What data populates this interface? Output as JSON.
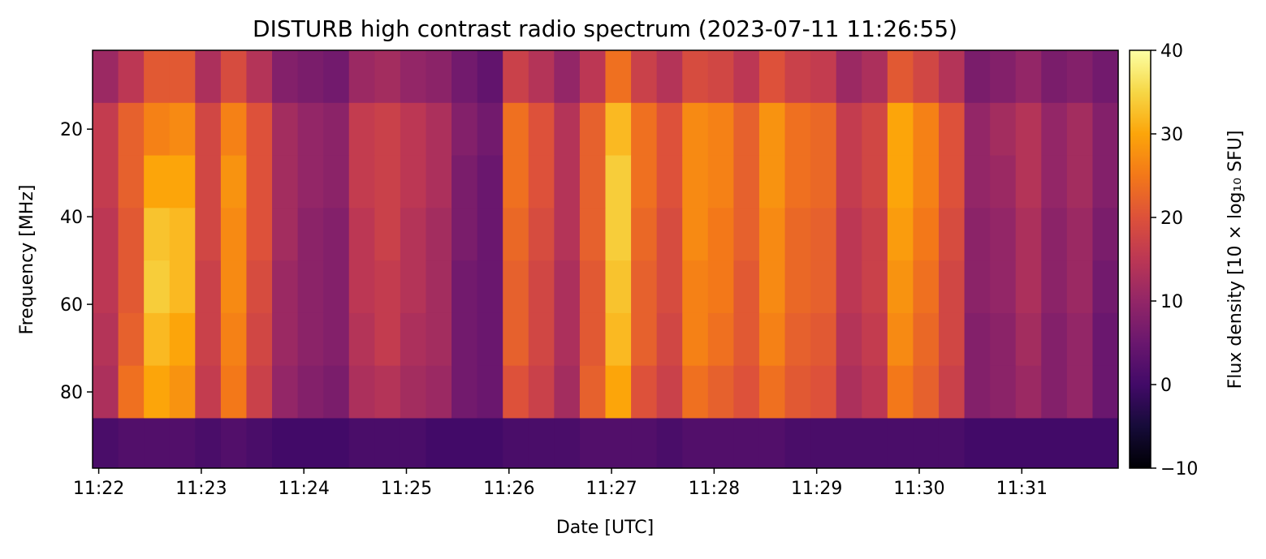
{
  "chart_data": {
    "type": "heatmap",
    "title": "DISTURB high contrast radio spectrum (2023-07-11 11:26:55)",
    "xlabel": "Date [UTC]",
    "ylabel": "Frequency [MHz]",
    "x": [
      21.94,
      22.19,
      22.44,
      22.69,
      22.94,
      23.19,
      23.44,
      23.69,
      23.94,
      24.19,
      24.44,
      24.69,
      24.94,
      25.19,
      25.44,
      25.69,
      25.94,
      26.19,
      26.44,
      26.69,
      26.94,
      27.19,
      27.44,
      27.69,
      27.94,
      28.19,
      28.44,
      28.69,
      28.94,
      29.19,
      29.44,
      29.69,
      29.94,
      30.19,
      30.44,
      30.69,
      30.94,
      31.19,
      31.44,
      31.69,
      31.94
    ],
    "y": [
      2,
      14,
      26,
      38,
      50,
      62,
      74,
      86,
      97.4
    ],
    "z": [
      [
        11,
        15,
        21,
        21,
        13,
        19,
        14,
        8,
        7,
        6,
        11,
        12,
        10,
        9,
        6,
        4,
        17,
        14,
        10,
        15,
        24,
        17,
        14,
        19,
        18,
        15,
        20,
        17,
        16,
        11,
        13,
        21,
        18,
        14,
        7,
        8,
        10,
        7,
        8,
        6
      ],
      [
        16,
        22,
        26,
        27,
        18,
        26,
        20,
        12,
        10,
        9,
        16,
        17,
        15,
        13,
        8,
        6,
        24,
        20,
        14,
        22,
        32,
        24,
        20,
        27,
        26,
        22,
        28,
        24,
        23,
        16,
        18,
        30,
        26,
        20,
        10,
        12,
        14,
        10,
        12,
        8
      ],
      [
        16,
        22,
        30,
        30,
        18,
        28,
        20,
        12,
        10,
        9,
        16,
        17,
        15,
        13,
        7,
        5,
        24,
        20,
        14,
        22,
        34,
        24,
        20,
        27,
        26,
        22,
        28,
        24,
        23,
        16,
        18,
        30,
        26,
        20,
        10,
        11,
        14,
        10,
        12,
        8
      ],
      [
        15,
        21,
        33,
        32,
        18,
        27,
        20,
        12,
        9,
        8,
        15,
        17,
        14,
        12,
        7,
        5,
        23,
        19,
        14,
        22,
        34,
        23,
        19,
        27,
        25,
        22,
        27,
        23,
        22,
        15,
        17,
        29,
        25,
        19,
        9,
        10,
        13,
        9,
        11,
        7
      ],
      [
        15,
        21,
        34,
        32,
        17,
        27,
        19,
        11,
        9,
        8,
        15,
        16,
        14,
        12,
        6,
        5,
        22,
        18,
        13,
        21,
        33,
        22,
        19,
        26,
        25,
        21,
        27,
        23,
        22,
        15,
        17,
        28,
        24,
        18,
        9,
        10,
        13,
        9,
        11,
        6
      ],
      [
        14,
        22,
        32,
        30,
        17,
        26,
        18,
        11,
        9,
        8,
        14,
        16,
        13,
        12,
        6,
        5,
        22,
        18,
        13,
        21,
        32,
        22,
        18,
        26,
        24,
        21,
        26,
        22,
        21,
        14,
        16,
        27,
        23,
        18,
        8,
        9,
        12,
        8,
        10,
        5
      ],
      [
        13,
        24,
        30,
        28,
        16,
        25,
        17,
        10,
        8,
        7,
        13,
        14,
        12,
        11,
        6,
        5,
        20,
        17,
        12,
        22,
        30,
        20,
        17,
        24,
        22,
        20,
        24,
        21,
        20,
        13,
        15,
        25,
        22,
        17,
        8,
        9,
        11,
        8,
        10,
        5
      ],
      [
        1,
        2,
        2,
        2,
        1,
        2,
        1,
        0,
        0,
        0,
        1,
        1,
        1,
        0,
        0,
        0,
        1,
        1,
        1,
        2,
        2,
        2,
        1,
        2,
        2,
        2,
        2,
        1,
        1,
        1,
        1,
        1,
        1,
        1,
        0,
        0,
        0,
        0,
        0,
        0
      ]
    ],
    "xlim": [
      21.94,
      31.94
    ],
    "ylim": [
      2,
      97.4
    ],
    "y_inverted": true,
    "xticks": [
      {
        "value": 22,
        "label": "11:22"
      },
      {
        "value": 23,
        "label": "11:23"
      },
      {
        "value": 24,
        "label": "11:24"
      },
      {
        "value": 25,
        "label": "11:25"
      },
      {
        "value": 26,
        "label": "11:26"
      },
      {
        "value": 27,
        "label": "11:27"
      },
      {
        "value": 28,
        "label": "11:28"
      },
      {
        "value": 29,
        "label": "11:29"
      },
      {
        "value": 30,
        "label": "11:30"
      },
      {
        "value": 31,
        "label": "11:31"
      }
    ],
    "yticks": [
      20,
      40,
      60,
      80
    ],
    "colormap": "inferno",
    "colorbar": {
      "label": "Flux density [10 × log₁₀ SFU]",
      "clim": [
        -10,
        40
      ],
      "ticks": [
        {
          "value": -10,
          "label": "−10"
        },
        0,
        10,
        20,
        30,
        40
      ]
    }
  }
}
